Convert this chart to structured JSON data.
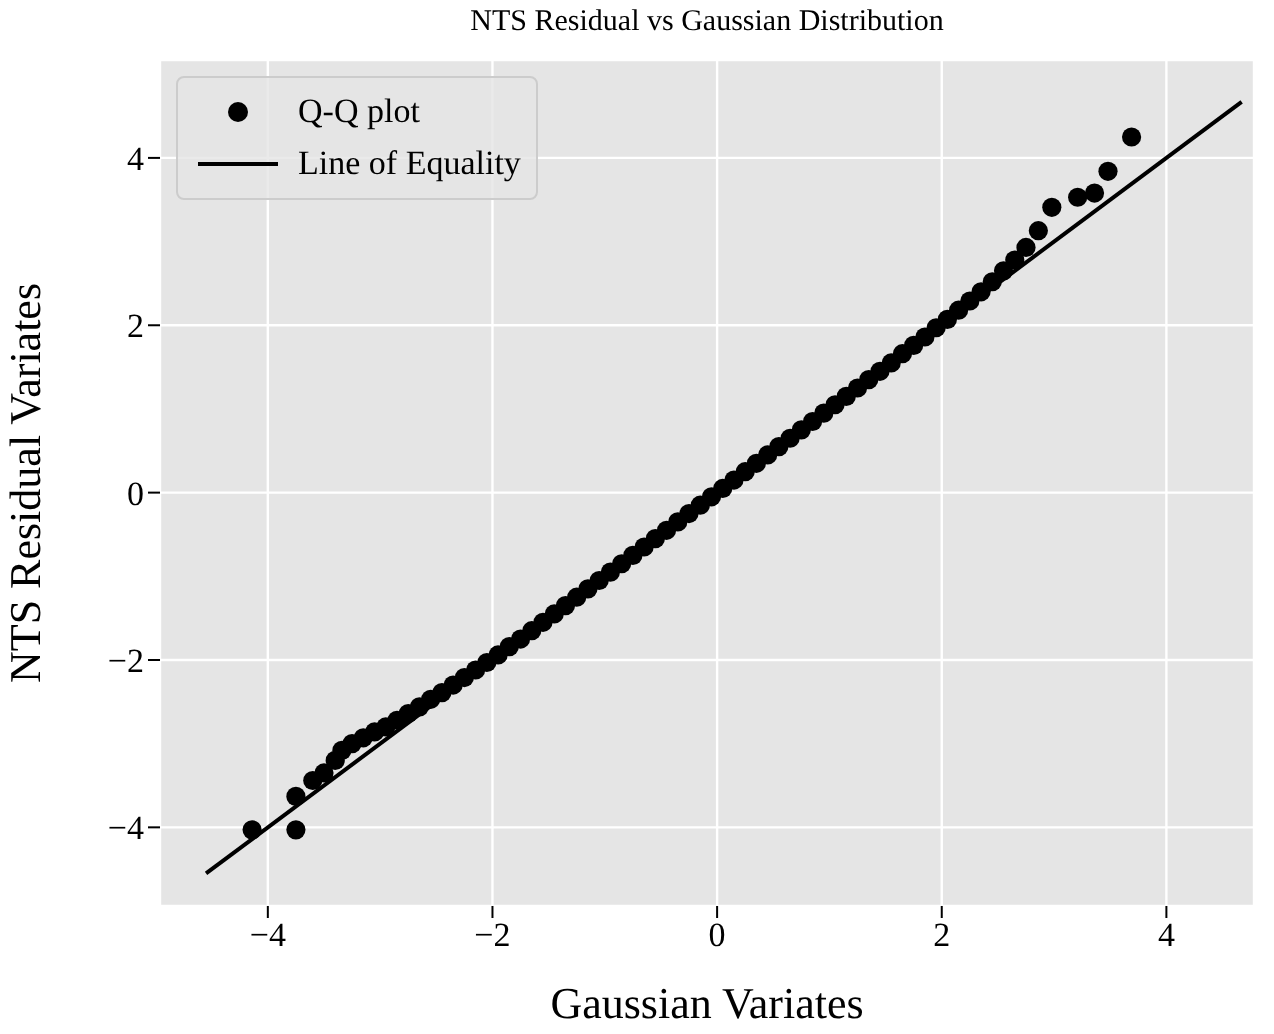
{
  "chart_data": {
    "type": "scatter",
    "title": "NTS Residual vs Gaussian Distribution",
    "xlabel": "Gaussian Variates",
    "ylabel": "NTS Residual Variates",
    "xlim": [
      -4.96,
      4.78
    ],
    "ylim": [
      -4.94,
      5.17
    ],
    "xticks": [
      -4,
      -2,
      0,
      2,
      4
    ],
    "yticks": [
      -4,
      -2,
      0,
      2,
      4
    ],
    "grid": true,
    "legend": "top left",
    "series": [
      {
        "name": "Q-Q plot",
        "marker": "circle",
        "color": "#000000",
        "x": [
          -4.14,
          -3.75,
          -3.75,
          -3.6,
          -3.5,
          -3.4,
          -3.34,
          -3.25,
          -3.15,
          -3.05,
          -2.95,
          -2.85,
          -2.75,
          -2.65,
          -2.55,
          -2.45,
          -2.35,
          -2.25,
          -2.15,
          -2.05,
          -1.95,
          -1.85,
          -1.75,
          -1.65,
          -1.55,
          -1.45,
          -1.35,
          -1.25,
          -1.15,
          -1.05,
          -0.95,
          -0.85,
          -0.75,
          -0.65,
          -0.55,
          -0.45,
          -0.35,
          -0.25,
          -0.15,
          -0.05,
          0.05,
          0.15,
          0.25,
          0.35,
          0.45,
          0.55,
          0.65,
          0.75,
          0.85,
          0.95,
          1.05,
          1.15,
          1.25,
          1.35,
          1.45,
          1.55,
          1.65,
          1.75,
          1.85,
          1.95,
          2.05,
          2.15,
          2.25,
          2.35,
          2.45,
          2.55,
          2.65,
          2.75,
          2.86,
          2.98,
          3.21,
          3.36,
          3.48,
          3.69
        ],
        "values": [
          -4.03,
          -4.03,
          -3.63,
          -3.44,
          -3.35,
          -3.2,
          -3.08,
          -3.0,
          -2.93,
          -2.86,
          -2.8,
          -2.72,
          -2.64,
          -2.56,
          -2.47,
          -2.39,
          -2.3,
          -2.21,
          -2.12,
          -2.03,
          -1.94,
          -1.84,
          -1.75,
          -1.65,
          -1.55,
          -1.45,
          -1.35,
          -1.25,
          -1.15,
          -1.05,
          -0.95,
          -0.85,
          -0.75,
          -0.65,
          -0.55,
          -0.45,
          -0.35,
          -0.25,
          -0.15,
          -0.05,
          0.05,
          0.15,
          0.25,
          0.35,
          0.45,
          0.55,
          0.65,
          0.75,
          0.85,
          0.95,
          1.05,
          1.15,
          1.25,
          1.35,
          1.45,
          1.55,
          1.66,
          1.76,
          1.86,
          1.97,
          2.07,
          2.18,
          2.29,
          2.4,
          2.52,
          2.65,
          2.78,
          2.93,
          3.13,
          3.41,
          3.53,
          3.58,
          3.84,
          4.25
        ]
      },
      {
        "name": "Line of Equality",
        "type": "line",
        "marker": "none",
        "line_style": "solid",
        "color": "#000000",
        "x": [
          -4.55,
          4.67
        ],
        "values": [
          -4.55,
          4.67
        ]
      }
    ]
  }
}
